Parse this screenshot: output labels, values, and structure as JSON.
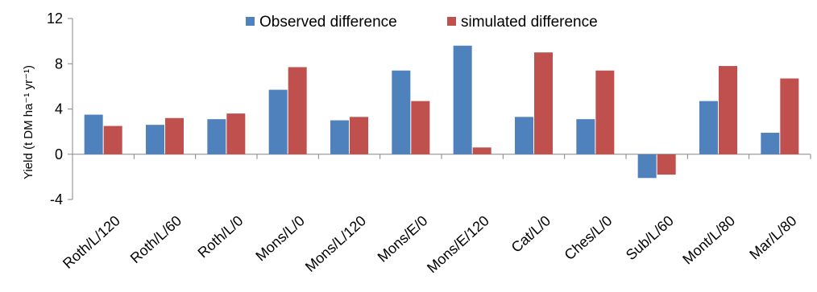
{
  "chart_data": {
    "type": "bar",
    "title": "",
    "xlabel": "",
    "ylabel": "Yield (t DM ha⁻¹ yr⁻¹)",
    "ylim": [
      -4,
      12
    ],
    "yticks": [
      "-4",
      "0",
      "4",
      "8",
      "12"
    ],
    "ytick_values": [
      -4,
      0,
      4,
      8,
      12
    ],
    "grid": false,
    "legend_position": "top-center",
    "categories": [
      "Roth/L/120",
      "Roth/L/60",
      "Roth/L/0",
      "Mons/L/0",
      "Mons/L/120",
      "Mons/E/0",
      "Mons/E/120",
      "Cat/L/0",
      "Ches/L/0",
      "Sub/L/60",
      "Mont/L/80",
      "Mar/L/80"
    ],
    "series": [
      {
        "name": "Observed difference",
        "color": "#4f81bd",
        "values": [
          3.5,
          2.6,
          3.1,
          5.7,
          3.0,
          7.4,
          9.6,
          3.3,
          3.1,
          -2.1,
          4.7,
          1.9
        ]
      },
      {
        "name": "simulated difference",
        "color": "#c0504d",
        "values": [
          2.5,
          3.2,
          3.6,
          7.7,
          3.3,
          4.7,
          0.6,
          9.0,
          7.4,
          -1.8,
          7.8,
          6.7
        ]
      }
    ]
  }
}
